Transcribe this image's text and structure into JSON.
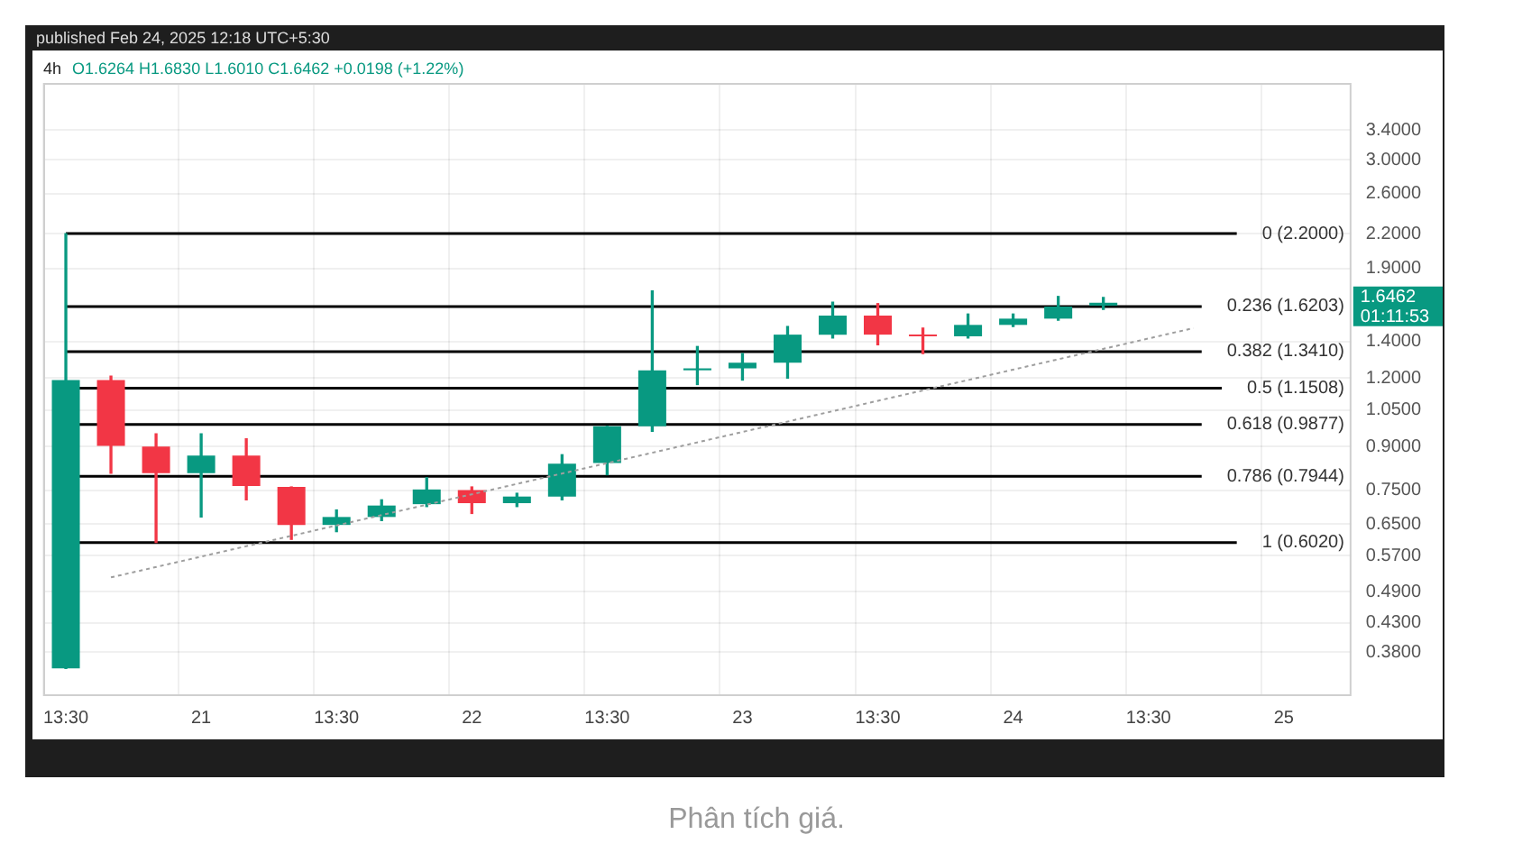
{
  "chart_data": {
    "type": "candlestick",
    "title": "4h",
    "subtitle": "published Feb 24, 2025 12:18 UTC+5:30",
    "categories": [
      "13:30",
      null,
      null,
      "21",
      null,
      null,
      "13:30",
      null,
      null,
      "22",
      null,
      null,
      "13:30",
      null,
      null,
      "23",
      null,
      null,
      "13:30",
      null,
      null,
      "24",
      null,
      null,
      "13:30",
      null,
      null,
      "25",
      null
    ],
    "ohlc": [
      [
        0.355,
        2.2,
        0.355,
        1.19
      ],
      [
        1.19,
        1.21,
        0.805,
        0.903
      ],
      [
        0.9,
        0.95,
        0.602,
        0.805
      ],
      [
        0.805,
        0.95,
        0.67,
        0.867
      ],
      [
        0.867,
        0.93,
        0.72,
        0.763
      ],
      [
        0.76,
        0.76,
        0.61,
        0.648
      ],
      [
        0.648,
        0.69,
        0.63,
        0.67
      ],
      [
        0.67,
        0.72,
        0.66,
        0.703
      ],
      [
        0.707,
        0.79,
        0.7,
        0.752
      ],
      [
        0.75,
        0.76,
        0.68,
        0.71
      ],
      [
        0.71,
        0.74,
        0.7,
        0.73
      ],
      [
        0.73,
        0.87,
        0.72,
        0.838
      ],
      [
        0.84,
        0.98,
        0.8,
        0.98
      ],
      [
        0.98,
        1.73,
        0.96,
        1.24
      ],
      [
        1.24,
        1.37,
        1.168,
        1.25
      ],
      [
        1.25,
        1.33,
        1.19,
        1.28
      ],
      [
        1.28,
        1.49,
        1.2,
        1.44
      ],
      [
        1.44,
        1.65,
        1.42,
        1.56
      ],
      [
        1.56,
        1.64,
        1.38,
        1.44
      ],
      [
        1.44,
        1.48,
        1.33,
        1.43
      ],
      [
        1.43,
        1.57,
        1.42,
        1.5
      ],
      [
        1.5,
        1.57,
        1.49,
        1.54
      ],
      [
        1.54,
        1.69,
        1.53,
        1.62
      ],
      [
        1.6264,
        1.683,
        1.601,
        1.6462
      ],
      null,
      null,
      null,
      null,
      null
    ],
    "colors": [
      "#089981",
      "#f23645",
      "#f23645",
      "#089981",
      "#f23645",
      "#f23645",
      "#089981",
      "#089981",
      "#089981",
      "#f23645",
      "#089981",
      "#089981",
      "#089981",
      "#089981",
      "#089981",
      "#089981",
      "#089981",
      "#089981",
      "#f23645",
      "#f23645",
      "#089981",
      "#089981",
      "#089981",
      "#089981",
      null,
      null,
      null,
      null,
      null
    ],
    "series": [
      {
        "type": "line",
        "color": "#9e9e9e",
        "line_style": "dotted",
        "marker": "none",
        "values": [
          null,
          0.52,
          null,
          null,
          null,
          null,
          null,
          null,
          null,
          null,
          null,
          null,
          null,
          null,
          null,
          null,
          null,
          null,
          null,
          null,
          null,
          null,
          null,
          null,
          null,
          1.48,
          null,
          null,
          null
        ]
      }
    ],
    "log": "y",
    "ylim": [
      0.316,
      4.14
    ],
    "yticks": [
      {
        "value": 0.38,
        "label": "0.3800"
      },
      {
        "value": 0.43,
        "label": "0.4300"
      },
      {
        "value": 0.49,
        "label": "0.4900"
      },
      {
        "value": 0.57,
        "label": "0.5700"
      },
      {
        "value": 0.65,
        "label": "0.6500"
      },
      {
        "value": 0.75,
        "label": "0.7500"
      },
      {
        "value": 0.9,
        "label": "0.9000"
      },
      {
        "value": 1.05,
        "label": "1.0500"
      },
      {
        "value": 1.2,
        "label": "1.2000"
      },
      {
        "value": 1.4,
        "label": "1.4000"
      },
      {
        "value": 1.9,
        "label": "1.9000"
      },
      {
        "value": 2.2,
        "label": "2.2000"
      },
      {
        "value": 2.6,
        "label": "2.6000"
      },
      {
        "value": 3.0,
        "label": "3.0000"
      },
      {
        "value": 3.4,
        "label": "3.4000"
      }
    ],
    "ref_lines": [
      {
        "axis": "y",
        "value": 2.2,
        "label": "0 (2.2000)",
        "color": "#000000"
      },
      {
        "axis": "y",
        "value": 1.6203,
        "label": "0.236 (1.6203)",
        "color": "#000000"
      },
      {
        "axis": "y",
        "value": 1.341,
        "label": "0.382 (1.3410)",
        "color": "#000000"
      },
      {
        "axis": "y",
        "value": 1.1508,
        "label": "0.5 (1.1508)",
        "color": "#000000"
      },
      {
        "axis": "y",
        "value": 0.9877,
        "label": "0.618 (0.9877)",
        "color": "#000000"
      },
      {
        "axis": "y",
        "value": 0.7944,
        "label": "0.786 (0.7944)",
        "color": "#000000"
      },
      {
        "axis": "y",
        "value": 0.602,
        "label": "1 (0.6020)",
        "color": "#000000"
      }
    ],
    "annotations": [
      "O1.6264 H1.6830 L1.6010 C1.6462 +0.0198 (+1.22%)",
      "01:11:53",
      "1.6462",
      "Phân tích giá."
    ],
    "grid": true,
    "legend": false
  }
}
